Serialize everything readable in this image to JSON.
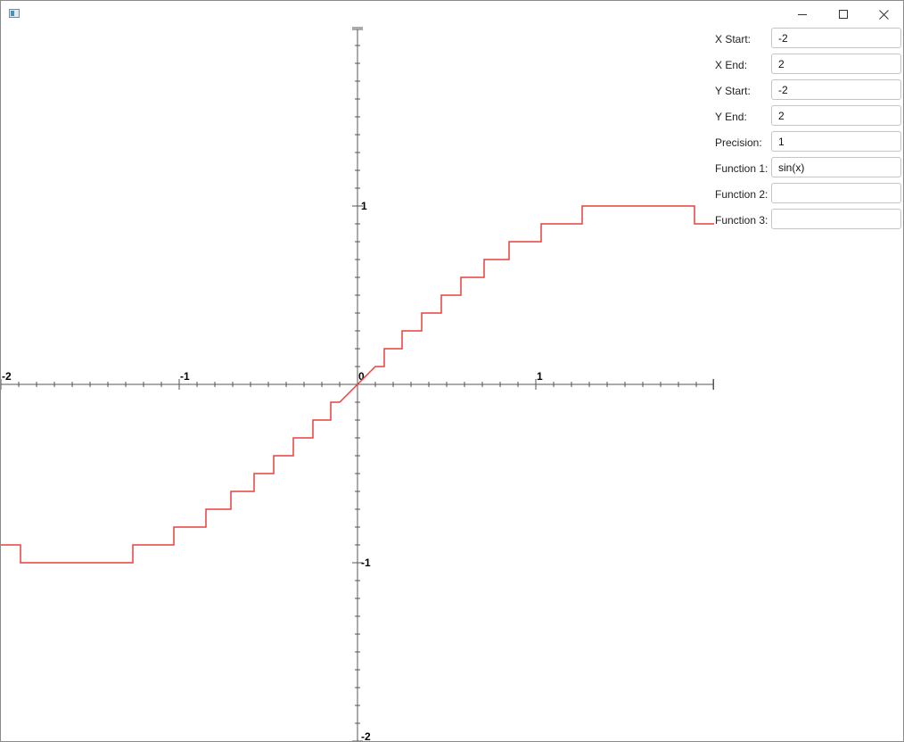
{
  "window": {
    "icons": {
      "app": "window-app-icon",
      "minimize": "minimize-icon",
      "maximize": "maximize-icon",
      "close": "close-icon"
    }
  },
  "form": {
    "fields": [
      {
        "label": "X Start:",
        "value": "-2"
      },
      {
        "label": "X End:",
        "value": "2"
      },
      {
        "label": "Y Start:",
        "value": "-2"
      },
      {
        "label": "Y End:",
        "value": "2"
      },
      {
        "label": "Precision:",
        "value": "1"
      },
      {
        "label": "Function 1:",
        "value": "sin(x)"
      },
      {
        "label": "Function 2:",
        "value": ""
      },
      {
        "label": "Function 3:",
        "value": ""
      }
    ]
  },
  "chart_data": {
    "type": "line",
    "xlim": [
      -2,
      2
    ],
    "ylim": [
      -2,
      2
    ],
    "grid": false,
    "x_tick_labels": [
      "-2",
      "-1",
      "0",
      "1"
    ],
    "y_tick_labels": [
      "1",
      "-1",
      "-2"
    ],
    "series": [
      {
        "color": "#e8413c",
        "points": [
          [
            -2.0,
            -0.9
          ],
          [
            -1.89,
            -0.9
          ],
          [
            -1.89,
            -1.0
          ],
          [
            -1.26,
            -1.0
          ],
          [
            -1.26,
            -0.9
          ],
          [
            -1.03,
            -0.9
          ],
          [
            -1.03,
            -0.8
          ],
          [
            -0.85,
            -0.8
          ],
          [
            -0.85,
            -0.7
          ],
          [
            -0.71,
            -0.7
          ],
          [
            -0.71,
            -0.6
          ],
          [
            -0.58,
            -0.6
          ],
          [
            -0.58,
            -0.5
          ],
          [
            -0.47,
            -0.5
          ],
          [
            -0.47,
            -0.4
          ],
          [
            -0.36,
            -0.4
          ],
          [
            -0.36,
            -0.3
          ],
          [
            -0.25,
            -0.3
          ],
          [
            -0.25,
            -0.2
          ],
          [
            -0.15,
            -0.2
          ],
          [
            -0.15,
            -0.1
          ],
          [
            -0.1,
            -0.1
          ],
          [
            0.0,
            0.0
          ],
          [
            0.1,
            0.1
          ],
          [
            0.15,
            0.1
          ],
          [
            0.15,
            0.2
          ],
          [
            0.25,
            0.2
          ],
          [
            0.25,
            0.3
          ],
          [
            0.36,
            0.3
          ],
          [
            0.36,
            0.4
          ],
          [
            0.47,
            0.4
          ],
          [
            0.47,
            0.5
          ],
          [
            0.58,
            0.5
          ],
          [
            0.58,
            0.6
          ],
          [
            0.71,
            0.6
          ],
          [
            0.71,
            0.7
          ],
          [
            0.85,
            0.7
          ],
          [
            0.85,
            0.8
          ],
          [
            1.03,
            0.8
          ],
          [
            1.03,
            0.9
          ],
          [
            1.26,
            0.9
          ],
          [
            1.26,
            1.0
          ],
          [
            1.89,
            1.0
          ],
          [
            1.89,
            0.9
          ],
          [
            2.0,
            0.9
          ]
        ]
      }
    ]
  }
}
